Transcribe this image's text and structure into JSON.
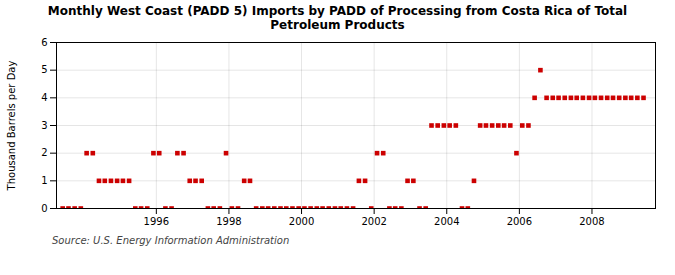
{
  "chart_data": {
    "type": "scatter",
    "title": "Monthly West Coast (PADD 5) Imports by PADD of Processing from Costa Rica of Total\nPetroleum Products",
    "ylabel": "Thousand Barrels per Day",
    "annotation": "Source: U.S. Energy Information Administration",
    "x": [
      1993.42,
      1993.58,
      1993.75,
      1993.92,
      1994.08,
      1994.25,
      1994.42,
      1994.58,
      1994.75,
      1994.92,
      1995.08,
      1995.25,
      1995.42,
      1995.58,
      1995.75,
      1995.92,
      1996.08,
      1996.25,
      1996.42,
      1996.58,
      1996.75,
      1996.92,
      1997.08,
      1997.25,
      1997.42,
      1997.58,
      1997.75,
      1997.92,
      1998.08,
      1998.25,
      1998.42,
      1998.58,
      1998.75,
      1998.92,
      1999.08,
      1999.25,
      1999.42,
      1999.58,
      1999.75,
      1999.92,
      2000.08,
      2000.25,
      2000.42,
      2000.58,
      2000.75,
      2000.92,
      2001.08,
      2001.25,
      2001.42,
      2001.58,
      2001.75,
      2001.92,
      2002.08,
      2002.25,
      2002.42,
      2002.58,
      2002.75,
      2002.92,
      2003.08,
      2003.25,
      2003.42,
      2003.58,
      2003.75,
      2003.92,
      2004.08,
      2004.25,
      2004.42,
      2004.58,
      2004.75,
      2004.92,
      2005.08,
      2005.25,
      2005.42,
      2005.58,
      2005.75,
      2005.92,
      2006.08,
      2006.25,
      2006.42,
      2006.58,
      2006.75,
      2006.92,
      2007.08,
      2007.25,
      2007.42,
      2007.58,
      2007.75,
      2007.92,
      2008.08,
      2008.25,
      2008.42,
      2008.58,
      2008.75,
      2008.92,
      2009.08,
      2009.25,
      2009.42
    ],
    "values": [
      0,
      0,
      0,
      0,
      2,
      2,
      1,
      1,
      1,
      1,
      1,
      1,
      0,
      0,
      0,
      2,
      2,
      0,
      0,
      2,
      2,
      1,
      1,
      1,
      0,
      0,
      0,
      2,
      0,
      0,
      1,
      1,
      0,
      0,
      0,
      0,
      0,
      0,
      0,
      0,
      0,
      0,
      0,
      0,
      0,
      0,
      0,
      0,
      0,
      1,
      1,
      0,
      2,
      2,
      0,
      0,
      0,
      1,
      1,
      0,
      0,
      3,
      3,
      3,
      3,
      3,
      0,
      0,
      1,
      3,
      3,
      3,
      3,
      3,
      3,
      2,
      3,
      3,
      4,
      5,
      4,
      4,
      4,
      4,
      4,
      4,
      4,
      4,
      4,
      4,
      4,
      4,
      4,
      4,
      4,
      4,
      4
    ],
    "color": "#cc0000",
    "marker": "square",
    "xlim": [
      1993.25,
      2009.75
    ],
    "xticks": [
      1996,
      1998,
      2000,
      2002,
      2004,
      2006,
      2008
    ],
    "ylim": [
      0,
      6
    ],
    "yticks": [
      0,
      1,
      2,
      3,
      4,
      5,
      6
    ],
    "grid": true
  }
}
